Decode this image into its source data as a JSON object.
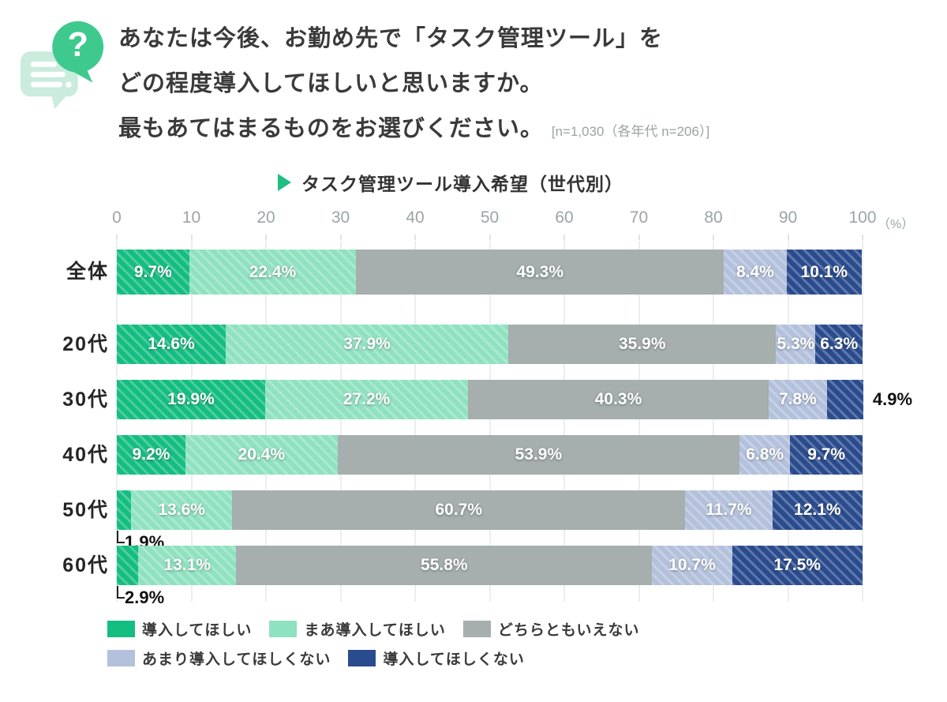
{
  "question": {
    "lines": [
      "あなたは今後、お勤め先で「タスク管理ツール」を",
      "どの程度導入してほしいと思いますか。",
      "最もあてはまるものをお選びください。"
    ],
    "note": "[n=1,030（各年代 n=206）]"
  },
  "chart_data": {
    "type": "bar",
    "stacked": true,
    "orientation": "horizontal",
    "title": "タスク管理ツール導入希望（世代別）",
    "unit": "（%）",
    "xlim": [
      0,
      100
    ],
    "xticks": [
      0,
      10,
      20,
      30,
      40,
      50,
      60,
      70,
      80,
      90,
      100
    ],
    "grid": true,
    "legend_position": "bottom",
    "categories": [
      "全体",
      "20代",
      "30代",
      "40代",
      "50代",
      "60代"
    ],
    "series": [
      {
        "name": "導入してほしい",
        "color": "#14bd80",
        "hatched": true,
        "values": [
          9.7,
          14.6,
          19.9,
          9.2,
          1.9,
          2.9
        ]
      },
      {
        "name": "まあ導入してほしい",
        "color": "#8fe2c0",
        "hatched": true,
        "values": [
          22.4,
          37.9,
          27.2,
          20.4,
          13.6,
          13.1
        ]
      },
      {
        "name": "どちらともいえない",
        "color": "#a6aeae",
        "hatched": false,
        "values": [
          49.3,
          35.9,
          40.3,
          53.9,
          60.7,
          55.8
        ]
      },
      {
        "name": "あまり導入してほしくない",
        "color": "#b3c1dc",
        "hatched": true,
        "values": [
          8.4,
          5.3,
          7.8,
          6.8,
          11.7,
          10.7
        ]
      },
      {
        "name": "導入してほしくない",
        "color": "#2a4b8d",
        "hatched": true,
        "values": [
          10.1,
          6.3,
          4.9,
          9.7,
          12.1,
          17.5
        ]
      }
    ],
    "label_overrides": {
      "30代|導入してほしくない": "out",
      "50代|導入してほしい": "below",
      "60代|導入してほしい": "below"
    }
  },
  "colors": {
    "accent_green": "#1fbe83",
    "icon_bubble_light": "#c9ecdd",
    "icon_bubble_green": "#3ec98f",
    "axis_text": "#9aa5a5",
    "title_text": "#3a3a3a"
  }
}
